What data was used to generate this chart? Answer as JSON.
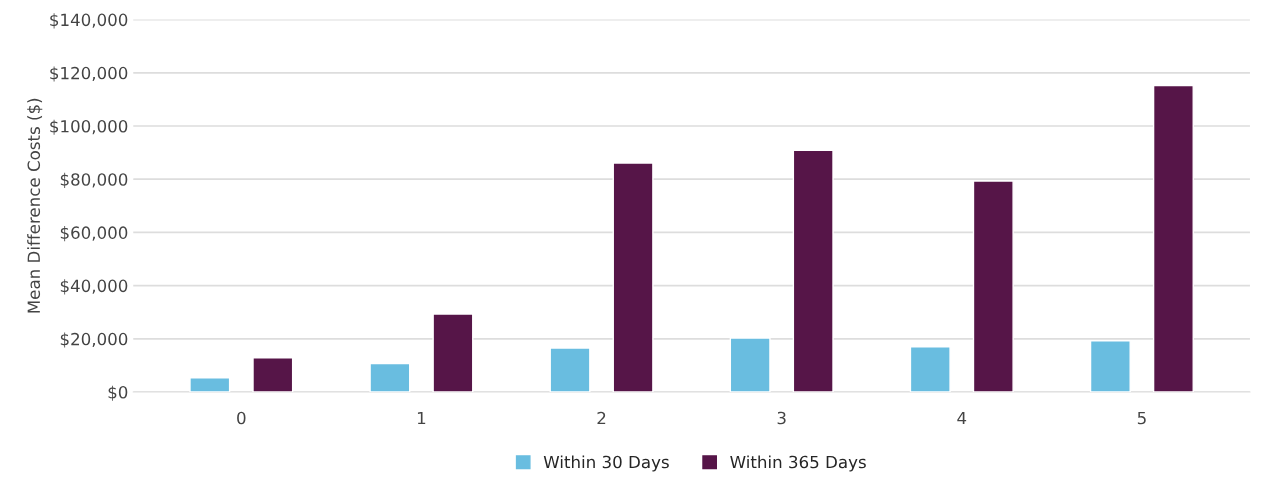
{
  "chart_data": {
    "type": "bar",
    "ylabel": "Mean Difference Costs ($)",
    "categories": [
      "0",
      "1",
      "2",
      "3",
      "4",
      "5"
    ],
    "series": [
      {
        "name": "Within 30 Days",
        "color": "#69bde0",
        "values": [
          5300,
          10700,
          16500,
          20300,
          17000,
          19200
        ]
      },
      {
        "name": "Within 365 Days",
        "color": "#561548",
        "values": [
          12900,
          29300,
          86100,
          90900,
          79300,
          115200
        ]
      }
    ],
    "ylim": [
      0,
      140000
    ],
    "yticks": [
      {
        "value": 0,
        "label": "$0"
      },
      {
        "value": 20000,
        "label": "$20,000"
      },
      {
        "value": 40000,
        "label": "$40,000"
      },
      {
        "value": 60000,
        "label": "$60,000"
      },
      {
        "value": 80000,
        "label": "$80,000"
      },
      {
        "value": 100000,
        "label": "$100,000"
      },
      {
        "value": 120000,
        "label": "$120,000"
      },
      {
        "value": 140000,
        "label": "$140,000"
      }
    ],
    "grid": "y",
    "legend": "bottom"
  }
}
